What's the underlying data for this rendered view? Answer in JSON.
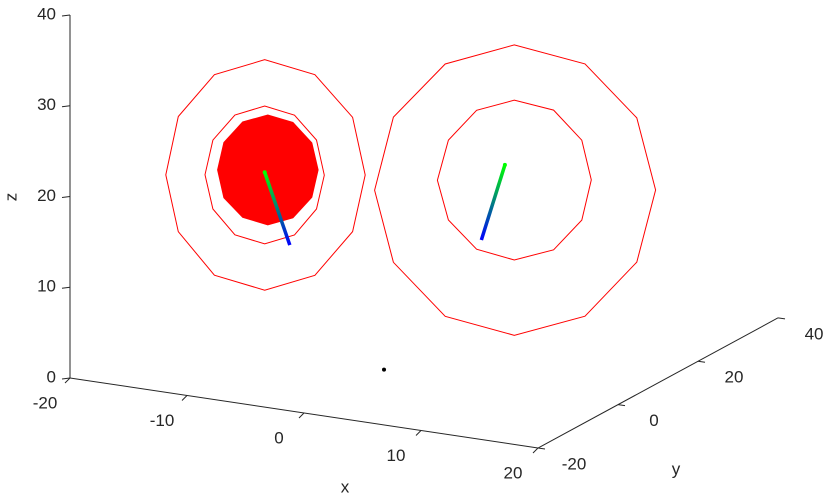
{
  "chart_data": {
    "type": "line3d",
    "x_label": "x",
    "y_label": "y",
    "z_label": "z",
    "xlim": [
      -20,
      20
    ],
    "ylim": [
      -20,
      40
    ],
    "zlim": [
      0,
      40
    ],
    "xticks": [
      -20,
      -10,
      0,
      10,
      20
    ],
    "yticks": [
      -20,
      0,
      20,
      40
    ],
    "zticks": [
      0,
      10,
      20,
      30,
      40
    ],
    "series": [
      {
        "color": "#ff0000",
        "closed": true,
        "x": [
          -1.2,
          -2.0,
          -4.4,
          -7.6,
          -10.8,
          -13.1,
          -13.9,
          -13.1,
          -10.8,
          -7.6,
          -4.4,
          -2.0
        ],
        "y": [
          -1.2,
          -2.0,
          -4.4,
          -7.6,
          -10.8,
          -13.1,
          -13.9,
          -13.1,
          -10.8,
          -7.6,
          -4.4,
          -2.0
        ],
        "z": [
          21.5,
          15.3,
          10.6,
          9.1,
          10.9,
          15.8,
          22.1,
          28.5,
          33.0,
          34.5,
          32.7,
          27.9
        ]
      },
      {
        "color": "#ff0000",
        "closed": true,
        "x": [
          -3.8,
          -4.3,
          -5.7,
          -7.6,
          -9.5,
          -10.9,
          -11.4,
          -10.9,
          -9.5,
          -7.6,
          -5.7,
          -4.3
        ],
        "y": [
          -3.8,
          -4.3,
          -5.7,
          -7.6,
          -9.5,
          -10.9,
          -11.4,
          -10.9,
          -9.5,
          -7.6,
          -5.7,
          -4.3
        ],
        "z": [
          21.6,
          17.9,
          15.1,
          14.2,
          15.3,
          18.2,
          22.0,
          25.8,
          28.5,
          29.4,
          28.3,
          25.5
        ]
      },
      {
        "color": "#ff0000",
        "closed": true,
        "fill": true,
        "x": [
          -4.2,
          -4.6,
          -5.8,
          -7.4,
          -9.0,
          -10.2,
          -10.6,
          -10.2,
          -9.0,
          -7.4,
          -5.8,
          -4.6
        ],
        "y": [
          -4.2,
          -4.6,
          -5.8,
          -7.4,
          -9.0,
          -10.2,
          -10.6,
          -10.2,
          -9.0,
          -7.4,
          -5.8,
          -4.6
        ],
        "z": [
          22.2,
          19.2,
          17.0,
          16.3,
          17.2,
          19.4,
          22.5,
          25.5,
          27.7,
          28.4,
          27.5,
          25.2
        ]
      },
      {
        "color": "#ff0000",
        "closed": true,
        "x": [
          17.3,
          16.1,
          12.8,
          8.3,
          3.9,
          0.6,
          -0.6,
          0.6,
          3.9,
          8.3,
          12.8,
          16.1
        ],
        "y": [
          17.3,
          16.1,
          12.8,
          8.3,
          3.9,
          0.6,
          -0.6,
          0.6,
          3.9,
          8.3,
          12.8,
          16.1
        ],
        "z": [
          19.0,
          11.1,
          5.3,
          3.4,
          5.7,
          11.8,
          19.8,
          27.8,
          33.5,
          35.4,
          33.1,
          27.0
        ]
      },
      {
        "color": "#ff0000",
        "closed": true,
        "x": [
          13.2,
          12.6,
          10.8,
          8.3,
          5.9,
          4.1,
          3.4,
          4.1,
          5.9,
          8.3,
          10.8,
          12.6
        ],
        "y": [
          13.2,
          12.6,
          10.8,
          8.3,
          5.9,
          4.1,
          3.4,
          4.1,
          5.9,
          8.3,
          10.8,
          12.6
        ],
        "z": [
          20.3,
          15.9,
          12.7,
          11.7,
          13.0,
          16.3,
          20.7,
          25.1,
          28.3,
          29.3,
          28.1,
          24.7
        ]
      }
    ],
    "segments": [
      {
        "x": [
          -7.6,
          -6.0
        ],
        "y": [
          -7.6,
          -6.0
        ],
        "z": [
          22.1,
          14.0
        ],
        "colors": [
          "#00ff00",
          "#0000ff"
        ]
      },
      {
        "x": [
          7.7,
          6.2
        ],
        "y": [
          7.7,
          6.2
        ],
        "z": [
          22.2,
          14.0
        ],
        "colors": [
          "#00ff00",
          "#0000ff"
        ]
      }
    ],
    "points": {
      "x": [
        0
      ],
      "y": [
        0
      ],
      "z": [
        0
      ],
      "color": "#000000"
    }
  }
}
